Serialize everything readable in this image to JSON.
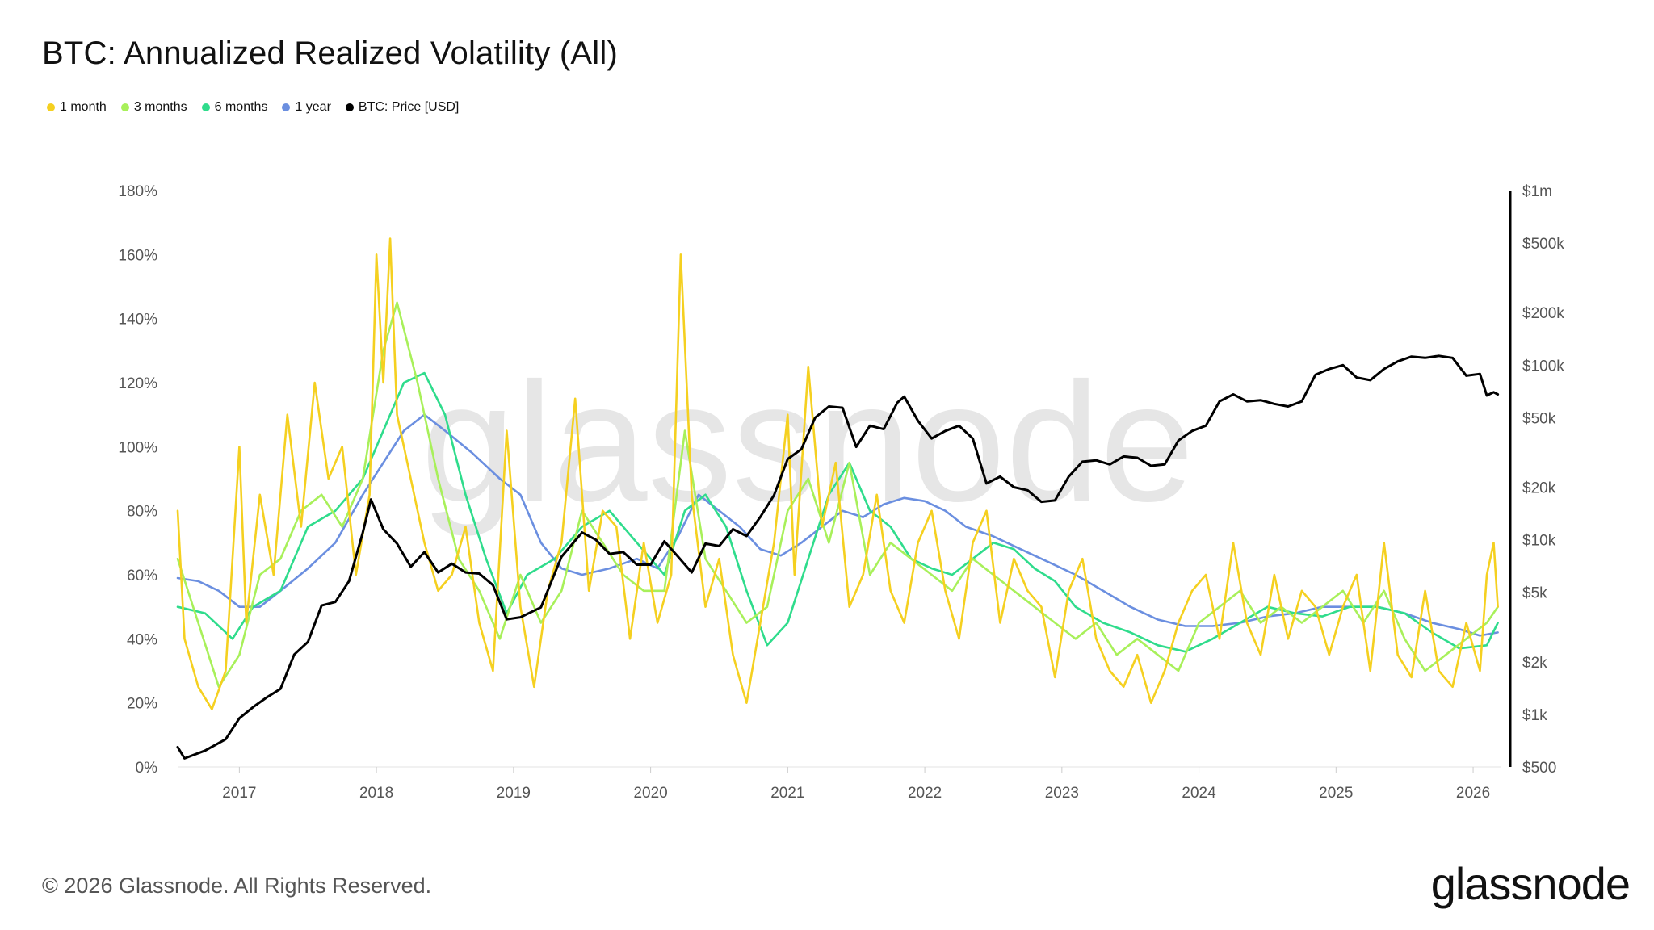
{
  "header": {
    "title": "BTC: Annualized Realized Volatility (All)"
  },
  "footer": {
    "copyright": "© 2026 Glassnode. All Rights Reserved.",
    "brand": "glassnode"
  },
  "watermark": "glassnode",
  "colors": {
    "vol_1m": "#f5d020",
    "vol_3m": "#a8f05a",
    "vol_6m": "#2fdc8c",
    "vol_1y": "#6b8fe0",
    "price": "#000000"
  },
  "chart_data": {
    "type": "line",
    "title": "BTC: Annualized Realized Volatility (All)",
    "legend_position": "top-left",
    "grid": false,
    "x_ticks": [
      "2017",
      "2018",
      "2019",
      "2020",
      "2021",
      "2022",
      "2023",
      "2024",
      "2025",
      "2026"
    ],
    "x_range": [
      2016.55,
      2026.2
    ],
    "y_left": {
      "ticks": [
        "0%",
        "20%",
        "40%",
        "60%",
        "80%",
        "100%",
        "120%",
        "140%",
        "160%",
        "180%"
      ],
      "range": [
        0,
        180
      ],
      "unit": "%"
    },
    "y_right": {
      "scale": "log",
      "ticks": [
        "$500",
        "$1k",
        "$2k",
        "$5k",
        "$10k",
        "$20k",
        "$50k",
        "$100k",
        "$200k",
        "$500k",
        "$1m"
      ],
      "tick_values": [
        500,
        1000,
        2000,
        5000,
        10000,
        20000,
        50000,
        100000,
        200000,
        500000,
        1000000
      ],
      "range": [
        500,
        1000000
      ]
    },
    "series": [
      {
        "name": "1 month",
        "axis": "left",
        "color": "#f5d020",
        "x": [
          2016.55,
          2016.6,
          2016.7,
          2016.8,
          2016.9,
          2017.0,
          2017.05,
          2017.15,
          2017.25,
          2017.35,
          2017.45,
          2017.55,
          2017.65,
          2017.75,
          2017.85,
          2017.95,
          2018.0,
          2018.05,
          2018.1,
          2018.15,
          2018.25,
          2018.35,
          2018.45,
          2018.55,
          2018.65,
          2018.75,
          2018.85,
          2018.95,
          2019.05,
          2019.15,
          2019.25,
          2019.35,
          2019.45,
          2019.55,
          2019.65,
          2019.75,
          2019.85,
          2019.95,
          2020.05,
          2020.15,
          2020.22,
          2020.3,
          2020.4,
          2020.5,
          2020.6,
          2020.7,
          2020.8,
          2020.9,
          2021.0,
          2021.05,
          2021.15,
          2021.25,
          2021.35,
          2021.45,
          2021.55,
          2021.65,
          2021.75,
          2021.85,
          2021.95,
          2022.05,
          2022.15,
          2022.25,
          2022.35,
          2022.45,
          2022.55,
          2022.65,
          2022.75,
          2022.85,
          2022.95,
          2023.05,
          2023.15,
          2023.25,
          2023.35,
          2023.45,
          2023.55,
          2023.65,
          2023.75,
          2023.85,
          2023.95,
          2024.05,
          2024.15,
          2024.25,
          2024.35,
          2024.45,
          2024.55,
          2024.65,
          2024.75,
          2024.85,
          2024.95,
          2025.05,
          2025.15,
          2025.25,
          2025.35,
          2025.45,
          2025.55,
          2025.65,
          2025.75,
          2025.85,
          2025.95,
          2026.05,
          2026.1,
          2026.15,
          2026.18
        ],
        "y": [
          80,
          40,
          25,
          18,
          30,
          100,
          45,
          85,
          60,
          110,
          75,
          120,
          90,
          100,
          60,
          85,
          160,
          120,
          165,
          110,
          90,
          70,
          55,
          60,
          75,
          45,
          30,
          105,
          50,
          25,
          55,
          70,
          115,
          55,
          80,
          75,
          40,
          70,
          45,
          60,
          160,
          85,
          50,
          65,
          35,
          20,
          45,
          70,
          110,
          60,
          125,
          75,
          95,
          50,
          60,
          85,
          55,
          45,
          70,
          80,
          55,
          40,
          70,
          80,
          45,
          65,
          55,
          50,
          28,
          55,
          65,
          40,
          30,
          25,
          35,
          20,
          30,
          45,
          55,
          60,
          40,
          70,
          45,
          35,
          60,
          40,
          55,
          50,
          35,
          50,
          60,
          30,
          70,
          35,
          28,
          55,
          30,
          25,
          45,
          30,
          60,
          70,
          50
        ]
      },
      {
        "name": "3 months",
        "axis": "left",
        "color": "#a8f05a",
        "x": [
          2016.55,
          2016.7,
          2016.85,
          2017.0,
          2017.15,
          2017.3,
          2017.45,
          2017.6,
          2017.75,
          2017.9,
          2018.05,
          2018.15,
          2018.3,
          2018.45,
          2018.6,
          2018.75,
          2018.9,
          2019.05,
          2019.2,
          2019.35,
          2019.5,
          2019.65,
          2019.8,
          2019.95,
          2020.1,
          2020.25,
          2020.4,
          2020.55,
          2020.7,
          2020.85,
          2021.0,
          2021.15,
          2021.3,
          2021.45,
          2021.6,
          2021.75,
          2021.9,
          2022.05,
          2022.2,
          2022.35,
          2022.5,
          2022.65,
          2022.8,
          2022.95,
          2023.1,
          2023.25,
          2023.4,
          2023.55,
          2023.7,
          2023.85,
          2024.0,
          2024.15,
          2024.3,
          2024.45,
          2024.6,
          2024.75,
          2024.9,
          2025.05,
          2025.2,
          2025.35,
          2025.5,
          2025.65,
          2025.8,
          2025.95,
          2026.1,
          2026.18
        ],
        "y": [
          65,
          45,
          25,
          35,
          60,
          65,
          80,
          85,
          75,
          90,
          130,
          145,
          120,
          90,
          65,
          55,
          40,
          60,
          45,
          55,
          80,
          70,
          60,
          55,
          55,
          105,
          65,
          55,
          45,
          50,
          80,
          90,
          70,
          95,
          60,
          70,
          65,
          60,
          55,
          65,
          60,
          55,
          50,
          45,
          40,
          45,
          35,
          40,
          35,
          30,
          45,
          50,
          55,
          45,
          50,
          45,
          50,
          55,
          45,
          55,
          40,
          30,
          35,
          40,
          45,
          50
        ]
      },
      {
        "name": "6 months",
        "axis": "left",
        "color": "#2fdc8c",
        "x": [
          2016.55,
          2016.75,
          2016.95,
          2017.1,
          2017.3,
          2017.5,
          2017.7,
          2017.9,
          2018.05,
          2018.2,
          2018.35,
          2018.5,
          2018.65,
          2018.8,
          2018.95,
          2019.1,
          2019.3,
          2019.5,
          2019.7,
          2019.9,
          2020.1,
          2020.25,
          2020.4,
          2020.55,
          2020.7,
          2020.85,
          2021.0,
          2021.15,
          2021.3,
          2021.45,
          2021.6,
          2021.75,
          2021.9,
          2022.05,
          2022.2,
          2022.35,
          2022.5,
          2022.65,
          2022.8,
          2022.95,
          2023.1,
          2023.3,
          2023.5,
          2023.7,
          2023.9,
          2024.1,
          2024.3,
          2024.5,
          2024.7,
          2024.9,
          2025.1,
          2025.3,
          2025.5,
          2025.7,
          2025.9,
          2026.1,
          2026.18
        ],
        "y": [
          50,
          48,
          40,
          50,
          55,
          75,
          80,
          90,
          105,
          120,
          123,
          110,
          85,
          65,
          48,
          60,
          65,
          75,
          80,
          70,
          60,
          80,
          85,
          75,
          55,
          38,
          45,
          65,
          85,
          95,
          80,
          75,
          65,
          62,
          60,
          65,
          70,
          68,
          62,
          58,
          50,
          45,
          42,
          38,
          36,
          40,
          45,
          50,
          48,
          47,
          50,
          50,
          48,
          42,
          37,
          38,
          45
        ]
      },
      {
        "name": "1 year",
        "axis": "left",
        "color": "#6b8fe0",
        "x": [
          2016.55,
          2016.7,
          2016.85,
          2017.0,
          2017.15,
          2017.3,
          2017.5,
          2017.7,
          2017.9,
          2018.05,
          2018.2,
          2018.35,
          2018.5,
          2018.7,
          2018.9,
          2019.05,
          2019.2,
          2019.35,
          2019.5,
          2019.7,
          2019.9,
          2020.05,
          2020.2,
          2020.35,
          2020.5,
          2020.65,
          2020.8,
          2020.95,
          2021.1,
          2021.25,
          2021.4,
          2021.55,
          2021.7,
          2021.85,
          2022.0,
          2022.15,
          2022.3,
          2022.5,
          2022.7,
          2022.9,
          2023.1,
          2023.3,
          2023.5,
          2023.7,
          2023.9,
          2024.1,
          2024.3,
          2024.5,
          2024.7,
          2024.9,
          2025.1,
          2025.3,
          2025.5,
          2025.7,
          2025.9,
          2026.05,
          2026.18
        ],
        "y": [
          59,
          58,
          55,
          50,
          50,
          55,
          62,
          70,
          85,
          95,
          105,
          110,
          105,
          98,
          90,
          85,
          70,
          62,
          60,
          62,
          65,
          62,
          72,
          85,
          80,
          75,
          68,
          66,
          70,
          75,
          80,
          78,
          82,
          84,
          83,
          80,
          75,
          72,
          68,
          64,
          60,
          55,
          50,
          46,
          44,
          44,
          45,
          47,
          48,
          50,
          50,
          50,
          48,
          45,
          43,
          41,
          42
        ]
      },
      {
        "name": "BTC: Price [USD]",
        "axis": "right",
        "color": "#000000",
        "x": [
          2016.55,
          2016.6,
          2016.75,
          2016.9,
          2017.0,
          2017.1,
          2017.2,
          2017.3,
          2017.4,
          2017.5,
          2017.6,
          2017.7,
          2017.8,
          2017.9,
          2017.96,
          2018.05,
          2018.15,
          2018.25,
          2018.35,
          2018.45,
          2018.55,
          2018.65,
          2018.75,
          2018.85,
          2018.95,
          2019.05,
          2019.2,
          2019.35,
          2019.5,
          2019.6,
          2019.7,
          2019.8,
          2019.9,
          2020.0,
          2020.1,
          2020.2,
          2020.3,
          2020.4,
          2020.5,
          2020.6,
          2020.7,
          2020.8,
          2020.9,
          2021.0,
          2021.1,
          2021.2,
          2021.3,
          2021.4,
          2021.5,
          2021.6,
          2021.7,
          2021.8,
          2021.85,
          2021.95,
          2022.05,
          2022.15,
          2022.25,
          2022.35,
          2022.45,
          2022.55,
          2022.65,
          2022.75,
          2022.85,
          2022.95,
          2023.05,
          2023.15,
          2023.25,
          2023.35,
          2023.45,
          2023.55,
          2023.65,
          2023.75,
          2023.85,
          2023.95,
          2024.05,
          2024.15,
          2024.25,
          2024.35,
          2024.45,
          2024.55,
          2024.65,
          2024.75,
          2024.85,
          2024.95,
          2025.05,
          2025.15,
          2025.25,
          2025.35,
          2025.45,
          2025.55,
          2025.65,
          2025.75,
          2025.85,
          2025.95,
          2026.05,
          2026.1,
          2026.15,
          2026.18
        ],
        "y": [
          650,
          560,
          620,
          720,
          950,
          1100,
          1250,
          1400,
          2200,
          2600,
          4200,
          4400,
          5800,
          11000,
          17000,
          11500,
          9500,
          7000,
          8500,
          6500,
          7300,
          6500,
          6400,
          5500,
          3500,
          3600,
          4100,
          8000,
          11000,
          10000,
          8300,
          8500,
          7200,
          7200,
          9800,
          8000,
          6500,
          9500,
          9200,
          11500,
          10500,
          13500,
          18000,
          29000,
          33000,
          50000,
          58000,
          57000,
          34000,
          45000,
          43000,
          61000,
          66000,
          48000,
          38000,
          42000,
          45000,
          38000,
          21000,
          23000,
          20000,
          19200,
          16500,
          16800,
          23000,
          28000,
          28500,
          27000,
          30000,
          29500,
          26500,
          27000,
          37000,
          42000,
          45000,
          62000,
          68000,
          62000,
          63000,
          60000,
          58000,
          62000,
          88000,
          95000,
          100000,
          85000,
          82000,
          95000,
          105000,
          112000,
          110000,
          113000,
          110000,
          87000,
          89000,
          67000,
          70000,
          68000
        ]
      }
    ]
  }
}
